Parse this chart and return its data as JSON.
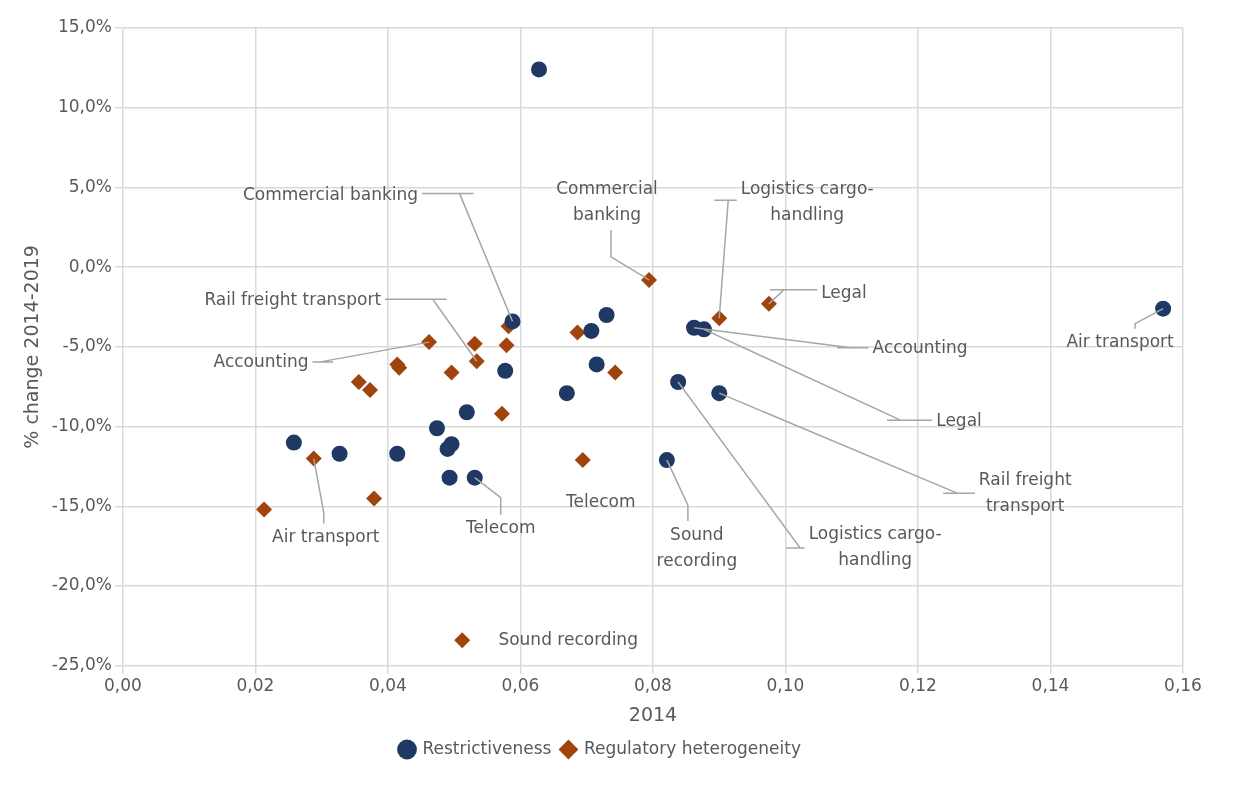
{
  "chart_data": {
    "type": "scatter",
    "xlabel": "2014",
    "ylabel": "% change 2014-2019",
    "xlim": [
      0,
      0.16
    ],
    "xticks": [
      {
        "value": 0,
        "label": "0,00"
      },
      {
        "value": 0.02,
        "label": "0,02"
      },
      {
        "value": 0.04,
        "label": "0,04"
      },
      {
        "value": 0.06,
        "label": "0,06"
      },
      {
        "value": 0.08,
        "label": "0,08"
      },
      {
        "value": 0.1,
        "label": "0,10"
      },
      {
        "value": 0.12,
        "label": "0,12"
      },
      {
        "value": 0.14,
        "label": "0,14"
      },
      {
        "value": 0.16,
        "label": "0,16"
      }
    ],
    "ylim": [
      -25,
      15
    ],
    "yticks": [
      {
        "value": -25,
        "label": "-25,0%"
      },
      {
        "value": -20,
        "label": "-20,0%"
      },
      {
        "value": -15,
        "label": "-15,0%"
      },
      {
        "value": -10,
        "label": "-10,0%"
      },
      {
        "value": -5,
        "label": "-5,0%"
      },
      {
        "value": 0,
        "label": "0,0%"
      },
      {
        "value": 5,
        "label": "5,0%"
      },
      {
        "value": 10,
        "label": "10,0%"
      },
      {
        "value": 15,
        "label": "15,0%"
      }
    ],
    "grid": true,
    "legend": "bottom",
    "series": [
      {
        "name": "Restrictiveness",
        "color": "#1f3864",
        "marker": "circle",
        "x": [
          0.0628,
          0.0588,
          0.0707,
          0.073,
          0.0715,
          0.067,
          0.0577,
          0.0519,
          0.0474,
          0.0496,
          0.049,
          0.0258,
          0.0327,
          0.0414,
          0.0493,
          0.0531,
          0.0821,
          0.0862,
          0.0877,
          0.0838,
          0.09,
          0.157
        ],
        "values": [
          12.4,
          -3.4,
          -4.0,
          -3.0,
          -6.1,
          -7.9,
          -6.5,
          -9.1,
          -10.1,
          -11.1,
          -11.4,
          -11.0,
          -11.7,
          -11.7,
          -13.2,
          -13.2,
          -12.1,
          -3.8,
          -3.9,
          -7.2,
          -7.9,
          -2.6
        ]
      },
      {
        "name": "Regulatory heterogeneity",
        "color": "#a0440c",
        "marker": "diamond",
        "x": [
          0.0794,
          0.09,
          0.0975,
          0.0582,
          0.0462,
          0.0531,
          0.0579,
          0.0686,
          0.0534,
          0.0414,
          0.0417,
          0.0496,
          0.0356,
          0.0373,
          0.0743,
          0.0572,
          0.0694,
          0.0288,
          0.0379,
          0.0213,
          0.0512
        ],
        "values": [
          -0.8,
          -3.2,
          -2.3,
          -3.7,
          -4.7,
          -4.8,
          -4.9,
          -4.1,
          -5.9,
          -6.1,
          -6.3,
          -6.6,
          -7.2,
          -7.7,
          -6.6,
          -9.2,
          -12.1,
          -12.0,
          -14.5,
          -15.2,
          -23.4
        ]
      }
    ],
    "annotations": [
      {
        "text": "Commercial banking",
        "x": 0.0588,
        "y": -3.4
      },
      {
        "text": "Commercial banking",
        "x": 0.0794,
        "y": -0.8
      },
      {
        "text": "Logistics cargo-handling",
        "x": 0.09,
        "y": -3.2
      },
      {
        "text": "Legal",
        "x": 0.0975,
        "y": -2.3
      },
      {
        "text": "Rail freight transport",
        "x": 0.0534,
        "y": -5.9
      },
      {
        "text": "Accounting",
        "x": 0.0462,
        "y": -4.7
      },
      {
        "text": "Accounting",
        "x": 0.0862,
        "y": -3.8
      },
      {
        "text": "Air transport",
        "x": 0.157,
        "y": -2.6
      },
      {
        "text": "Legal",
        "x": 0.0877,
        "y": -3.9
      },
      {
        "text": "Rail freight transport",
        "x": 0.09,
        "y": -7.9
      },
      {
        "text": "Logistics cargo-handling",
        "x": 0.0838,
        "y": -7.2
      },
      {
        "text": "Sound recording",
        "x": 0.0821,
        "y": -12.1
      },
      {
        "text": "Telecom",
        "x": 0.0694,
        "y": -12.1
      },
      {
        "text": "Telecom",
        "x": 0.0531,
        "y": -13.2
      },
      {
        "text": "Air transport",
        "x": 0.0288,
        "y": -12.0
      },
      {
        "text": "Sound recording",
        "x": 0.0512,
        "y": -23.4
      }
    ]
  }
}
